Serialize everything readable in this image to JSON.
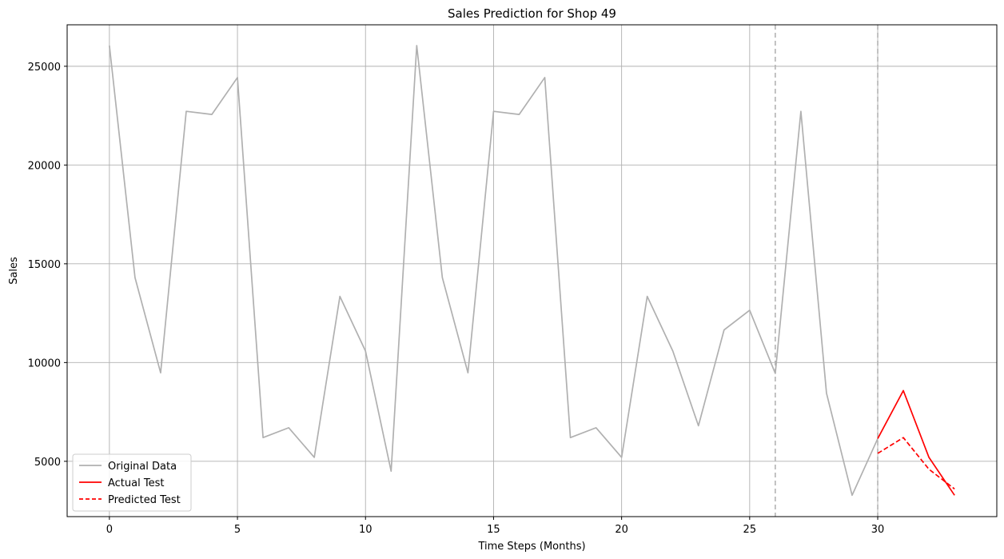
{
  "chart_data": {
    "type": "line",
    "title": "Sales Prediction for Shop 49",
    "xlabel": "Time Steps (Months)",
    "ylabel": "Sales",
    "xlim": [
      -1.65,
      34.65
    ],
    "ylim": [
      2200,
      27100
    ],
    "x_ticks": [
      0,
      5,
      10,
      15,
      20,
      25,
      30
    ],
    "y_ticks": [
      5000,
      10000,
      15000,
      20000,
      25000
    ],
    "grid": true,
    "legend_position": "lower-left",
    "vertical_markers": [
      {
        "x": 26,
        "style": "dashed",
        "color": "#b3b3b3"
      },
      {
        "x": 30,
        "style": "dashed",
        "color": "#b3b3b3"
      }
    ],
    "series": [
      {
        "name": "Original Data",
        "color": "#b0b0b0",
        "style": "solid",
        "x": [
          0,
          1,
          2,
          3,
          4,
          5,
          6,
          7,
          8,
          9,
          10,
          11,
          12,
          13,
          14,
          15,
          16,
          17,
          18,
          19,
          20,
          21,
          22,
          23,
          24,
          25,
          26,
          27,
          28,
          29,
          30
        ],
        "values": [
          26050,
          14300,
          9480,
          22720,
          22560,
          24430,
          6200,
          6700,
          5200,
          13350,
          10580,
          4500,
          26050,
          14300,
          9480,
          22720,
          22560,
          24430,
          6200,
          6700,
          5200,
          13350,
          10580,
          6800,
          11650,
          12650,
          9450,
          22720,
          8450,
          3280,
          6150
        ]
      },
      {
        "name": "Actual Test",
        "color": "#ff0000",
        "style": "solid",
        "x": [
          30,
          31,
          32,
          33
        ],
        "values": [
          6150,
          8580,
          5200,
          3280
        ]
      },
      {
        "name": "Predicted Test",
        "color": "#ff0000",
        "style": "dashed",
        "x": [
          30,
          31,
          32,
          33
        ],
        "values": [
          5400,
          6200,
          4600,
          3600
        ]
      }
    ]
  }
}
